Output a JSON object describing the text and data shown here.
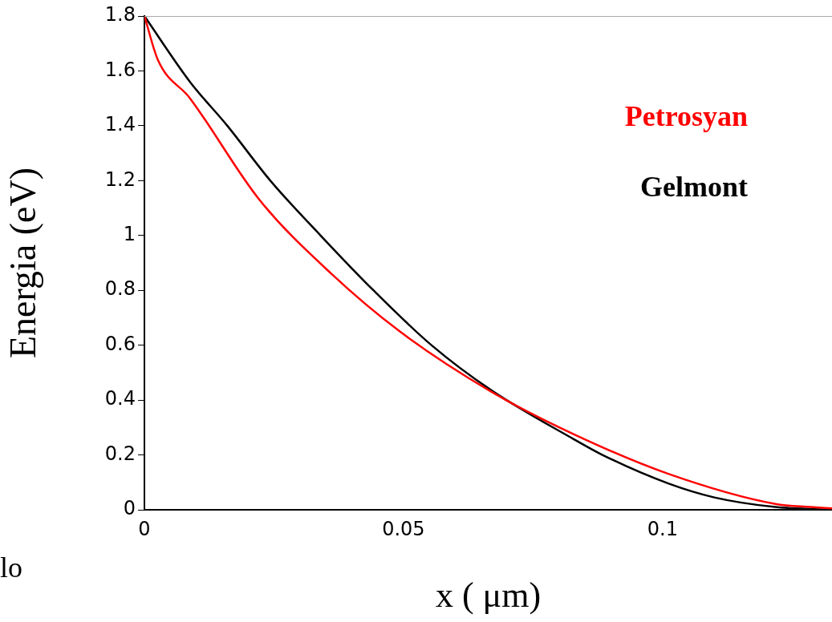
{
  "chart_data": {
    "type": "line",
    "xlabel": "x ( μm)",
    "ylabel": "Energia (eV)",
    "xlim": [
      0,
      0.1327
    ],
    "xticks": [
      0,
      0.05,
      0.1
    ],
    "ylim": [
      0,
      1.8
    ],
    "yticks": [
      0,
      0.2,
      0.4,
      0.6,
      0.8,
      1,
      1.2,
      1.4,
      1.6,
      1.8
    ],
    "grid": false,
    "legend": "top right",
    "marker": "none",
    "line_style": "solid",
    "annotations": [
      "lo"
    ],
    "series": [
      {
        "name": "Petrosyan",
        "color": "#ff0000",
        "x": [
          0,
          0.0026,
          0.0088,
          0.0222,
          0.0361,
          0.0493,
          0.067,
          0.0829,
          0.1011,
          0.1218,
          0.1286,
          0.1327
        ],
        "values": [
          1.8,
          1.64,
          1.5,
          1.13,
          0.86,
          0.65,
          0.43,
          0.275,
          0.131,
          0.021,
          0.01,
          0.005
        ]
      },
      {
        "name": "Gelmont",
        "color": "#000000",
        "x": [
          0,
          0.0088,
          0.016,
          0.0243,
          0.034,
          0.0442,
          0.0554,
          0.067,
          0.0829,
          0.0884,
          0.1011,
          0.11,
          0.1218,
          0.1327
        ],
        "values": [
          1.8,
          1.56,
          1.4,
          1.2,
          1.0,
          0.8,
          0.6,
          0.435,
          0.257,
          0.2,
          0.096,
          0.045,
          0.01,
          0
        ]
      }
    ]
  }
}
